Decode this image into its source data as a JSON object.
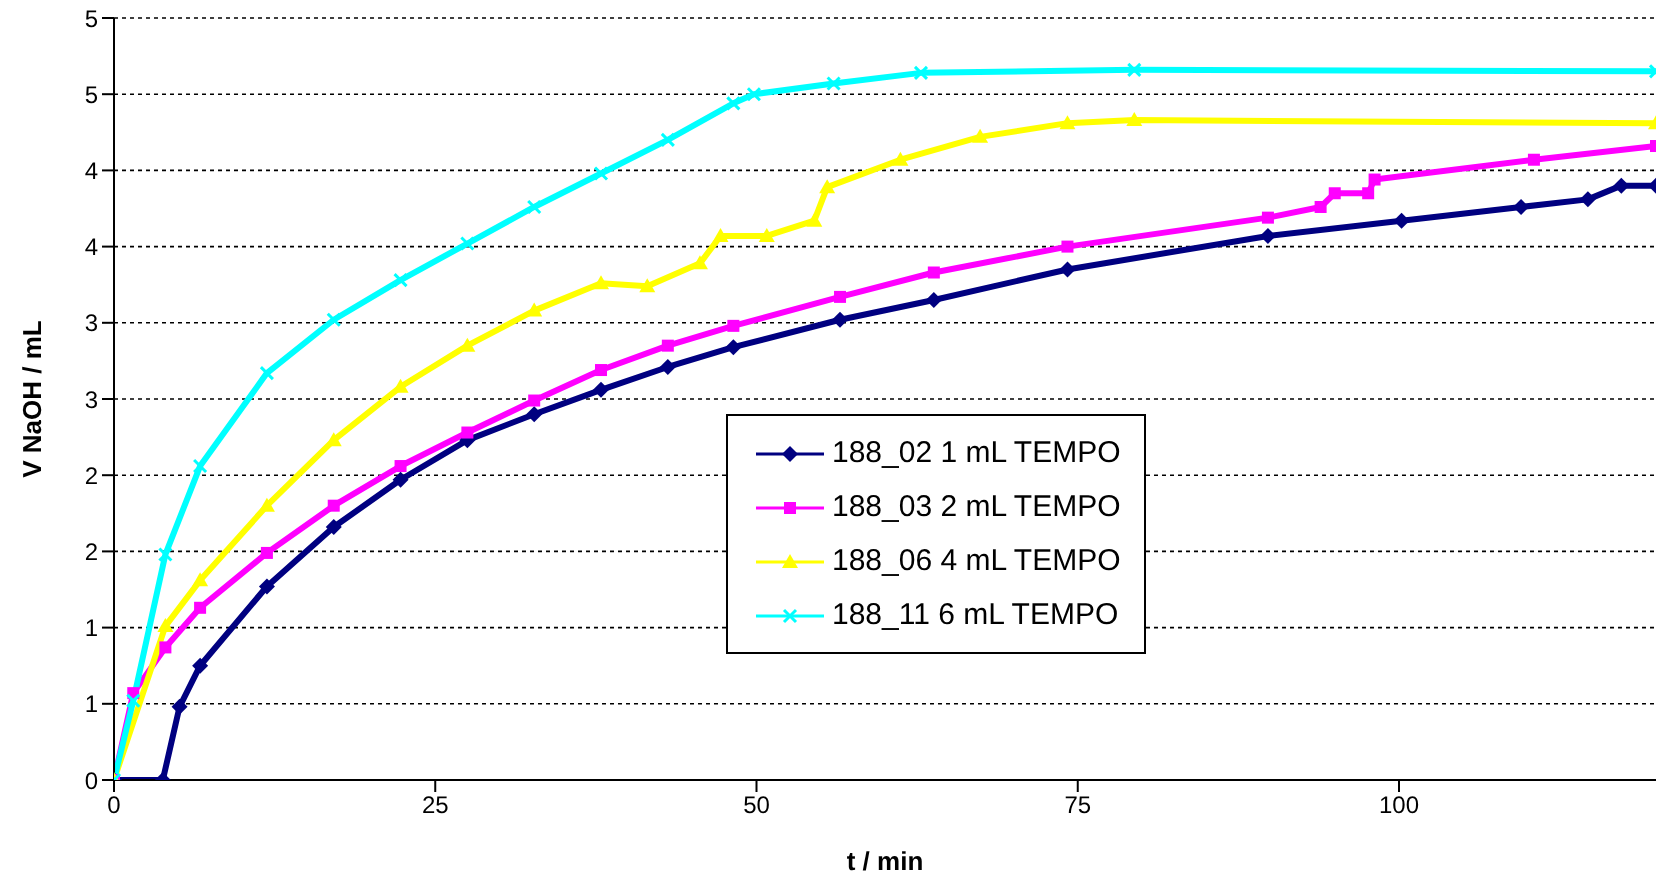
{
  "chart_data": {
    "type": "line",
    "xlabel": "t / min",
    "ylabel": "V NaOH / mL",
    "xlim": [
      0,
      120
    ],
    "xticks": [
      0,
      25,
      50,
      75,
      100
    ],
    "ylim": [
      0,
      5
    ],
    "yticks": [
      0,
      {
        "value": 0.5,
        "label": "1"
      },
      {
        "value": 1,
        "label": "1"
      },
      {
        "value": 1.5,
        "label": "2"
      },
      {
        "value": 2,
        "label": "2"
      },
      {
        "value": 2.5,
        "label": "3"
      },
      {
        "value": 3,
        "label": "3"
      },
      {
        "value": 3.5,
        "label": "4"
      },
      {
        "value": 4,
        "label": "4"
      },
      {
        "value": 4.5,
        "label": "5"
      },
      {
        "value": 5,
        "label": "5"
      }
    ],
    "grid": "y",
    "legend": "bottom",
    "line_style": "solid",
    "series": [
      {
        "name": "188_02 1 mL TEMPO",
        "color": "#000080",
        "marker": "diamond",
        "x": [
          0,
          3.8,
          5.1,
          6.7,
          11.9,
          17.1,
          22.3,
          27.5,
          32.7,
          37.9,
          43.1,
          48.2,
          56.5,
          63.8,
          74.2,
          89.8,
          100.2,
          109.5,
          114.7,
          117.3,
          120
        ],
        "values": [
          0,
          0,
          0.48,
          0.75,
          1.27,
          1.66,
          1.97,
          2.23,
          2.4,
          2.56,
          2.71,
          2.84,
          3.02,
          3.15,
          3.35,
          3.57,
          3.67,
          3.76,
          3.81,
          3.9,
          3.9
        ]
      },
      {
        "name": "188_03 2 mL TEMPO",
        "color": "#ff00ff",
        "marker": "square",
        "x": [
          0,
          1.5,
          4,
          6.7,
          11.9,
          17.1,
          22.3,
          27.5,
          32.7,
          37.9,
          43.1,
          48.2,
          56.5,
          63.8,
          74.2,
          89.8,
          93.9,
          95,
          97.6,
          98.1,
          110.5,
          120
        ],
        "values": [
          0,
          0.57,
          0.87,
          1.13,
          1.49,
          1.8,
          2.06,
          2.28,
          2.49,
          2.69,
          2.85,
          2.98,
          3.17,
          3.33,
          3.5,
          3.69,
          3.76,
          3.85,
          3.85,
          3.94,
          4.07,
          4.16
        ]
      },
      {
        "name": "188_06 4 mL TEMPO",
        "color": "#ffff00",
        "marker": "triangle",
        "x": [
          0,
          4,
          6.7,
          11.9,
          17.1,
          22.3,
          27.5,
          32.7,
          37.9,
          41.5,
          45.6,
          47.2,
          50.8,
          54.5,
          55.5,
          61.2,
          67.4,
          74.2,
          79.4,
          120
        ],
        "values": [
          0,
          1.01,
          1.31,
          1.8,
          2.23,
          2.58,
          2.85,
          3.08,
          3.26,
          3.24,
          3.39,
          3.57,
          3.57,
          3.67,
          3.89,
          4.07,
          4.22,
          4.31,
          4.33,
          4.31
        ]
      },
      {
        "name": "188_11 6 mL TEMPO",
        "color": "#00ffff",
        "marker": "cross",
        "x": [
          0,
          1.5,
          4,
          6.7,
          11.9,
          17.1,
          22.3,
          27.5,
          32.7,
          37.9,
          43.1,
          48.2,
          49.8,
          56,
          62.8,
          79.4,
          120
        ],
        "values": [
          0,
          0.52,
          1.48,
          2.06,
          2.67,
          3.02,
          3.28,
          3.52,
          3.76,
          3.98,
          4.2,
          4.44,
          4.5,
          4.57,
          4.64,
          4.66,
          4.65
        ]
      }
    ]
  }
}
